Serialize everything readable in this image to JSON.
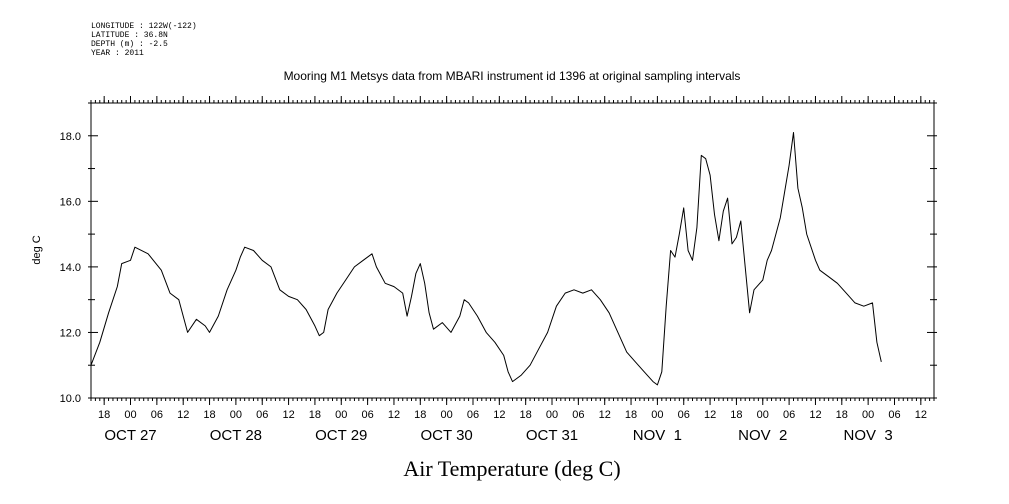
{
  "header": {
    "meta_lines": [
      "LONGITUDE : 122W(-122)",
      "LATITUDE : 36.8N",
      "DEPTH (m) : -2.5",
      "YEAR : 2011"
    ]
  },
  "chart_data": {
    "type": "line",
    "title": "Mooring M1 Metsys data from MBARI instrument id 1396 at original sampling intervals",
    "xlabel": "Air Temperature (deg C)",
    "ylabel": "deg C",
    "ylim": [
      10.0,
      19.0
    ],
    "y_ticks": [
      10.0,
      12.0,
      14.0,
      16.0,
      18.0
    ],
    "y_tick_labels": [
      "10.0",
      "12.0",
      "14.0",
      "16.0",
      "18.0"
    ],
    "x_range": [
      "2011-10-26T15:00",
      "2011-11-03T15:00"
    ],
    "x_hour_ticks": [
      {
        "t": "2011-10-26T18:00",
        "label": "18"
      },
      {
        "t": "2011-10-27T00:00",
        "label": "00"
      },
      {
        "t": "2011-10-27T06:00",
        "label": "06"
      },
      {
        "t": "2011-10-27T12:00",
        "label": "12"
      },
      {
        "t": "2011-10-27T18:00",
        "label": "18"
      },
      {
        "t": "2011-10-28T00:00",
        "label": "00"
      },
      {
        "t": "2011-10-28T06:00",
        "label": "06"
      },
      {
        "t": "2011-10-28T12:00",
        "label": "12"
      },
      {
        "t": "2011-10-28T18:00",
        "label": "18"
      },
      {
        "t": "2011-10-29T00:00",
        "label": "00"
      },
      {
        "t": "2011-10-29T06:00",
        "label": "06"
      },
      {
        "t": "2011-10-29T12:00",
        "label": "12"
      },
      {
        "t": "2011-10-29T18:00",
        "label": "18"
      },
      {
        "t": "2011-10-30T00:00",
        "label": "00"
      },
      {
        "t": "2011-10-30T06:00",
        "label": "06"
      },
      {
        "t": "2011-10-30T12:00",
        "label": "12"
      },
      {
        "t": "2011-10-30T18:00",
        "label": "18"
      },
      {
        "t": "2011-10-31T00:00",
        "label": "00"
      },
      {
        "t": "2011-10-31T06:00",
        "label": "06"
      },
      {
        "t": "2011-10-31T12:00",
        "label": "12"
      },
      {
        "t": "2011-10-31T18:00",
        "label": "18"
      },
      {
        "t": "2011-11-01T00:00",
        "label": "00"
      },
      {
        "t": "2011-11-01T06:00",
        "label": "06"
      },
      {
        "t": "2011-11-01T12:00",
        "label": "12"
      },
      {
        "t": "2011-11-01T18:00",
        "label": "18"
      },
      {
        "t": "2011-11-02T00:00",
        "label": "00"
      },
      {
        "t": "2011-11-02T06:00",
        "label": "06"
      },
      {
        "t": "2011-11-02T12:00",
        "label": "12"
      },
      {
        "t": "2011-11-02T18:00",
        "label": "18"
      },
      {
        "t": "2011-11-03T00:00",
        "label": "00"
      },
      {
        "t": "2011-11-03T06:00",
        "label": "06"
      },
      {
        "t": "2011-11-03T12:00",
        "label": "12"
      }
    ],
    "x_day_labels": [
      {
        "t": "2011-10-27T00:00",
        "label": "OCT 27"
      },
      {
        "t": "2011-10-28T00:00",
        "label": "OCT 28"
      },
      {
        "t": "2011-10-29T00:00",
        "label": "OCT 29"
      },
      {
        "t": "2011-10-30T00:00",
        "label": "OCT 30"
      },
      {
        "t": "2011-10-31T00:00",
        "label": "OCT 31"
      },
      {
        "t": "2011-11-01T00:00",
        "label": "NOV  1"
      },
      {
        "t": "2011-11-02T00:00",
        "label": "NOV  2"
      },
      {
        "t": "2011-11-03T00:00",
        "label": "NOV  3"
      }
    ],
    "series": [
      {
        "values": [
          {
            "x": "2011-10-26T15:00",
            "y": 11.0
          },
          {
            "x": "2011-10-26T17:00",
            "y": 11.7
          },
          {
            "x": "2011-10-26T19:00",
            "y": 12.6
          },
          {
            "x": "2011-10-26T21:00",
            "y": 13.4
          },
          {
            "x": "2011-10-26T22:00",
            "y": 14.1
          },
          {
            "x": "2011-10-27T00:00",
            "y": 14.2
          },
          {
            "x": "2011-10-27T01:00",
            "y": 14.6
          },
          {
            "x": "2011-10-27T04:00",
            "y": 14.4
          },
          {
            "x": "2011-10-27T07:00",
            "y": 13.9
          },
          {
            "x": "2011-10-27T09:00",
            "y": 13.2
          },
          {
            "x": "2011-10-27T11:00",
            "y": 13.0
          },
          {
            "x": "2011-10-27T12:00",
            "y": 12.5
          },
          {
            "x": "2011-10-27T13:00",
            "y": 12.0
          },
          {
            "x": "2011-10-27T15:00",
            "y": 12.4
          },
          {
            "x": "2011-10-27T17:00",
            "y": 12.2
          },
          {
            "x": "2011-10-27T18:00",
            "y": 12.0
          },
          {
            "x": "2011-10-27T20:00",
            "y": 12.5
          },
          {
            "x": "2011-10-27T22:00",
            "y": 13.3
          },
          {
            "x": "2011-10-28T00:00",
            "y": 13.9
          },
          {
            "x": "2011-10-28T01:00",
            "y": 14.3
          },
          {
            "x": "2011-10-28T02:00",
            "y": 14.6
          },
          {
            "x": "2011-10-28T04:00",
            "y": 14.5
          },
          {
            "x": "2011-10-28T06:00",
            "y": 14.2
          },
          {
            "x": "2011-10-28T08:00",
            "y": 14.0
          },
          {
            "x": "2011-10-28T10:00",
            "y": 13.3
          },
          {
            "x": "2011-10-28T12:00",
            "y": 13.1
          },
          {
            "x": "2011-10-28T14:00",
            "y": 13.0
          },
          {
            "x": "2011-10-28T16:00",
            "y": 12.7
          },
          {
            "x": "2011-10-28T18:00",
            "y": 12.2
          },
          {
            "x": "2011-10-28T19:00",
            "y": 11.9
          },
          {
            "x": "2011-10-28T20:00",
            "y": 12.0
          },
          {
            "x": "2011-10-28T21:00",
            "y": 12.7
          },
          {
            "x": "2011-10-28T23:00",
            "y": 13.2
          },
          {
            "x": "2011-10-29T01:00",
            "y": 13.6
          },
          {
            "x": "2011-10-29T03:00",
            "y": 14.0
          },
          {
            "x": "2011-10-29T05:00",
            "y": 14.2
          },
          {
            "x": "2011-10-29T07:00",
            "y": 14.4
          },
          {
            "x": "2011-10-29T08:00",
            "y": 14.0
          },
          {
            "x": "2011-10-29T10:00",
            "y": 13.5
          },
          {
            "x": "2011-10-29T12:00",
            "y": 13.4
          },
          {
            "x": "2011-10-29T14:00",
            "y": 13.2
          },
          {
            "x": "2011-10-29T15:00",
            "y": 12.5
          },
          {
            "x": "2011-10-29T16:00",
            "y": 13.1
          },
          {
            "x": "2011-10-29T17:00",
            "y": 13.8
          },
          {
            "x": "2011-10-29T18:00",
            "y": 14.1
          },
          {
            "x": "2011-10-29T19:00",
            "y": 13.5
          },
          {
            "x": "2011-10-29T20:00",
            "y": 12.6
          },
          {
            "x": "2011-10-29T21:00",
            "y": 12.1
          },
          {
            "x": "2011-10-29T23:00",
            "y": 12.3
          },
          {
            "x": "2011-10-30T01:00",
            "y": 12.0
          },
          {
            "x": "2011-10-30T03:00",
            "y": 12.5
          },
          {
            "x": "2011-10-30T04:00",
            "y": 13.0
          },
          {
            "x": "2011-10-30T05:00",
            "y": 12.9
          },
          {
            "x": "2011-10-30T07:00",
            "y": 12.5
          },
          {
            "x": "2011-10-30T09:00",
            "y": 12.0
          },
          {
            "x": "2011-10-30T11:00",
            "y": 11.7
          },
          {
            "x": "2011-10-30T13:00",
            "y": 11.3
          },
          {
            "x": "2011-10-30T14:00",
            "y": 10.8
          },
          {
            "x": "2011-10-30T15:00",
            "y": 10.5
          },
          {
            "x": "2011-10-30T17:00",
            "y": 10.7
          },
          {
            "x": "2011-10-30T19:00",
            "y": 11.0
          },
          {
            "x": "2011-10-30T21:00",
            "y": 11.5
          },
          {
            "x": "2011-10-30T23:00",
            "y": 12.0
          },
          {
            "x": "2011-10-31T01:00",
            "y": 12.8
          },
          {
            "x": "2011-10-31T03:00",
            "y": 13.2
          },
          {
            "x": "2011-10-31T05:00",
            "y": 13.3
          },
          {
            "x": "2011-10-31T07:00",
            "y": 13.2
          },
          {
            "x": "2011-10-31T09:00",
            "y": 13.3
          },
          {
            "x": "2011-10-31T11:00",
            "y": 13.0
          },
          {
            "x": "2011-10-31T13:00",
            "y": 12.6
          },
          {
            "x": "2011-10-31T15:00",
            "y": 12.0
          },
          {
            "x": "2011-10-31T17:00",
            "y": 11.4
          },
          {
            "x": "2011-10-31T19:00",
            "y": 11.1
          },
          {
            "x": "2011-10-31T21:00",
            "y": 10.8
          },
          {
            "x": "2011-10-31T23:00",
            "y": 10.5
          },
          {
            "x": "2011-11-01T00:00",
            "y": 10.4
          },
          {
            "x": "2011-11-01T01:00",
            "y": 10.8
          },
          {
            "x": "2011-11-01T02:00",
            "y": 12.8
          },
          {
            "x": "2011-11-01T03:00",
            "y": 14.5
          },
          {
            "x": "2011-11-01T04:00",
            "y": 14.3
          },
          {
            "x": "2011-11-01T05:00",
            "y": 15.0
          },
          {
            "x": "2011-11-01T06:00",
            "y": 15.8
          },
          {
            "x": "2011-11-01T07:00",
            "y": 14.5
          },
          {
            "x": "2011-11-01T08:00",
            "y": 14.2
          },
          {
            "x": "2011-11-01T09:00",
            "y": 15.2
          },
          {
            "x": "2011-11-01T10:00",
            "y": 17.4
          },
          {
            "x": "2011-11-01T11:00",
            "y": 17.3
          },
          {
            "x": "2011-11-01T12:00",
            "y": 16.8
          },
          {
            "x": "2011-11-01T13:00",
            "y": 15.6
          },
          {
            "x": "2011-11-01T14:00",
            "y": 14.8
          },
          {
            "x": "2011-11-01T15:00",
            "y": 15.7
          },
          {
            "x": "2011-11-01T16:00",
            "y": 16.1
          },
          {
            "x": "2011-11-01T17:00",
            "y": 14.7
          },
          {
            "x": "2011-11-01T18:00",
            "y": 14.9
          },
          {
            "x": "2011-11-01T19:00",
            "y": 15.4
          },
          {
            "x": "2011-11-01T20:00",
            "y": 14.0
          },
          {
            "x": "2011-11-01T21:00",
            "y": 12.6
          },
          {
            "x": "2011-11-01T22:00",
            "y": 13.3
          },
          {
            "x": "2011-11-02T00:00",
            "y": 13.6
          },
          {
            "x": "2011-11-02T01:00",
            "y": 14.2
          },
          {
            "x": "2011-11-02T02:00",
            "y": 14.5
          },
          {
            "x": "2011-11-02T04:00",
            "y": 15.5
          },
          {
            "x": "2011-11-02T05:00",
            "y": 16.3
          },
          {
            "x": "2011-11-02T06:00",
            "y": 17.1
          },
          {
            "x": "2011-11-02T07:00",
            "y": 18.1
          },
          {
            "x": "2011-11-02T08:00",
            "y": 16.4
          },
          {
            "x": "2011-11-02T09:00",
            "y": 15.8
          },
          {
            "x": "2011-11-02T10:00",
            "y": 15.0
          },
          {
            "x": "2011-11-02T12:00",
            "y": 14.2
          },
          {
            "x": "2011-11-02T13:00",
            "y": 13.9
          },
          {
            "x": "2011-11-02T15:00",
            "y": 13.7
          },
          {
            "x": "2011-11-02T17:00",
            "y": 13.5
          },
          {
            "x": "2011-11-02T19:00",
            "y": 13.2
          },
          {
            "x": "2011-11-02T21:00",
            "y": 12.9
          },
          {
            "x": "2011-11-02T23:00",
            "y": 12.8
          },
          {
            "x": "2011-11-03T01:00",
            "y": 12.9
          },
          {
            "x": "2011-11-03T02:00",
            "y": 11.7
          },
          {
            "x": "2011-11-03T03:00",
            "y": 11.1
          }
        ]
      }
    ]
  }
}
